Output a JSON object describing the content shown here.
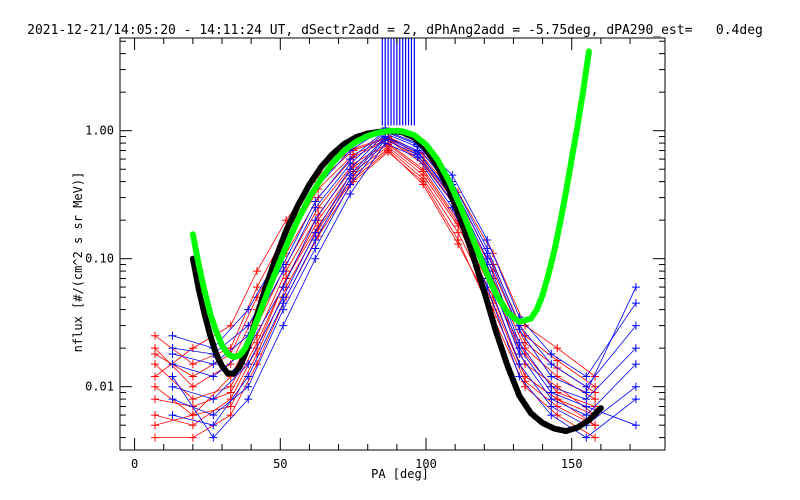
{
  "chart_data": {
    "type": "line",
    "title": "2021-12-21/14:05:20 - 14:11:24 UT, dSectr2add = 2, dPhAng2add = -5.75deg, dPA290_est=   0.4deg",
    "xlabel": "PA [deg]",
    "ylabel": "nflux [#/(cm^2 s sr MeV)]",
    "xlim": [
      -5,
      182
    ],
    "ylim": [
      0.0032,
      5.3
    ],
    "yscale": "log",
    "grid": false,
    "legend": "none",
    "x_ticks": [
      0,
      50,
      100,
      150
    ],
    "x_tick_labels": [
      "0",
      "50",
      "100",
      "150"
    ],
    "y_ticks": [
      0.01,
      0.1,
      1.0
    ],
    "y_tick_labels": [
      "0.01",
      "0.10",
      "1.00"
    ],
    "colors": {
      "red_traces": "#ff0000",
      "blue_traces": "#0000ff",
      "black_fit": "#000000",
      "green_fit": "#00ff00",
      "axes": "#000000"
    },
    "series": [
      {
        "color": "red",
        "style": "lines+plus-markers",
        "x": [
          7,
          20,
          33,
          42,
          52,
          63,
          75,
          87,
          99,
          111,
          123,
          134,
          145,
          158
        ],
        "curves": [
          [
            0.02,
            0.01,
            0.015,
            0.04,
            0.11,
            0.3,
            0.62,
            0.85,
            0.55,
            0.24,
            0.07,
            0.02,
            0.012,
            0.008
          ],
          [
            0.01,
            0.006,
            0.012,
            0.03,
            0.09,
            0.25,
            0.55,
            0.8,
            0.5,
            0.2,
            0.06,
            0.015,
            0.01,
            0.006
          ],
          [
            0.006,
            0.005,
            0.008,
            0.02,
            0.07,
            0.2,
            0.48,
            0.75,
            0.45,
            0.18,
            0.05,
            0.012,
            0.008,
            0.005
          ],
          [
            0.025,
            0.015,
            0.02,
            0.06,
            0.16,
            0.4,
            0.7,
            0.88,
            0.62,
            0.3,
            0.09,
            0.025,
            0.016,
            0.01
          ],
          [
            0.004,
            0.004,
            0.006,
            0.015,
            0.05,
            0.15,
            0.4,
            0.68,
            0.4,
            0.14,
            0.035,
            0.01,
            0.006,
            0.004
          ],
          [
            0.015,
            0.008,
            0.01,
            0.025,
            0.08,
            0.22,
            0.52,
            0.78,
            0.48,
            0.19,
            0.055,
            0.018,
            0.009,
            0.007
          ],
          [
            0.012,
            0.02,
            0.03,
            0.08,
            0.2,
            0.45,
            0.72,
            0.9,
            0.66,
            0.33,
            0.11,
            0.03,
            0.02,
            0.012
          ],
          [
            0.008,
            0.007,
            0.009,
            0.022,
            0.07,
            0.18,
            0.45,
            0.72,
            0.42,
            0.16,
            0.045,
            0.012,
            0.008,
            0.006
          ],
          [
            0.018,
            0.012,
            0.018,
            0.05,
            0.13,
            0.35,
            0.65,
            0.86,
            0.58,
            0.26,
            0.08,
            0.022,
            0.014,
            0.009
          ],
          [
            0.005,
            0.006,
            0.007,
            0.018,
            0.06,
            0.17,
            0.42,
            0.7,
            0.38,
            0.13,
            0.04,
            0.011,
            0.007,
            0.005
          ]
        ]
      },
      {
        "color": "blue",
        "style": "lines+plus-markers",
        "x": [
          13,
          27,
          39,
          51,
          62,
          74,
          86,
          97,
          109,
          121,
          132,
          143,
          155,
          172
        ],
        "curves": [
          [
            0.02,
            0.018,
            0.03,
            0.09,
            0.28,
            0.6,
            1.0,
            0.8,
            0.4,
            0.12,
            0.03,
            0.015,
            0.01,
            0.03
          ],
          [
            0.015,
            0.012,
            0.02,
            0.06,
            0.2,
            0.5,
            0.95,
            0.75,
            0.35,
            0.1,
            0.022,
            0.01,
            0.008,
            0.02
          ],
          [
            0.01,
            0.008,
            0.015,
            0.05,
            0.16,
            0.45,
            0.9,
            0.7,
            0.3,
            0.08,
            0.018,
            0.008,
            0.006,
            0.015
          ],
          [
            0.025,
            0.02,
            0.04,
            0.12,
            0.35,
            0.7,
            1.05,
            0.85,
            0.45,
            0.14,
            0.035,
            0.018,
            0.012,
            0.045
          ],
          [
            0.008,
            0.006,
            0.01,
            0.04,
            0.12,
            0.38,
            0.85,
            0.65,
            0.28,
            0.07,
            0.015,
            0.007,
            0.005,
            0.01
          ],
          [
            0.012,
            0.004,
            0.008,
            0.03,
            0.1,
            0.32,
            0.8,
            0.62,
            0.25,
            0.06,
            0.012,
            0.006,
            0.004,
            0.008
          ],
          [
            0.018,
            0.015,
            0.025,
            0.08,
            0.25,
            0.55,
            0.98,
            0.78,
            0.38,
            0.11,
            0.028,
            0.012,
            0.009,
            0.06
          ],
          [
            0.006,
            0.005,
            0.012,
            0.045,
            0.14,
            0.42,
            0.88,
            0.68,
            0.32,
            0.09,
            0.02,
            0.009,
            0.007,
            0.005
          ]
        ]
      },
      {
        "name": "",
        "color": "blue",
        "style": "vertical-lines",
        "x": [
          85,
          86,
          87,
          88,
          89,
          90,
          91,
          92,
          93,
          94,
          95,
          96
        ],
        "from": 1.1,
        "to": 5.3
      },
      {
        "color": "black",
        "style": "thick-dashed-fit",
        "x": [
          20,
          22,
          24,
          26,
          28,
          30,
          32,
          34,
          36,
          38,
          40,
          42,
          45,
          48,
          52,
          56,
          60,
          64,
          68,
          72,
          76,
          80,
          84,
          88,
          90,
          92,
          96,
          100,
          104,
          108,
          112,
          116,
          120,
          124,
          128,
          132,
          136,
          140,
          144,
          148,
          152,
          156,
          160
        ],
        "values": [
          0.1,
          0.058,
          0.037,
          0.025,
          0.018,
          0.0145,
          0.0127,
          0.0127,
          0.0142,
          0.018,
          0.025,
          0.036,
          0.06,
          0.095,
          0.165,
          0.26,
          0.38,
          0.52,
          0.66,
          0.79,
          0.89,
          0.95,
          0.98,
          0.99,
          0.985,
          0.97,
          0.88,
          0.72,
          0.52,
          0.34,
          0.2,
          0.108,
          0.055,
          0.027,
          0.0145,
          0.0085,
          0.0062,
          0.0052,
          0.0047,
          0.0045,
          0.0048,
          0.0055,
          0.0068
        ]
      },
      {
        "color": "green",
        "style": "thick-dashed-fit",
        "x": [
          20,
          22,
          24,
          26,
          28,
          30,
          32,
          34,
          36,
          38,
          40,
          42,
          45,
          48,
          52,
          56,
          60,
          64,
          68,
          72,
          76,
          80,
          84,
          88,
          90,
          92,
          96,
          100,
          104,
          108,
          112,
          116,
          120,
          124,
          128,
          132,
          136,
          138,
          140,
          142,
          144,
          146,
          148,
          150,
          152,
          154,
          156
        ],
        "values": [
          0.155,
          0.09,
          0.056,
          0.037,
          0.027,
          0.021,
          0.018,
          0.017,
          0.0175,
          0.02,
          0.025,
          0.033,
          0.05,
          0.075,
          0.125,
          0.2,
          0.3,
          0.42,
          0.56,
          0.7,
          0.82,
          0.91,
          0.97,
          1.0,
          1.0,
          0.99,
          0.92,
          0.78,
          0.59,
          0.4,
          0.25,
          0.145,
          0.085,
          0.053,
          0.038,
          0.032,
          0.034,
          0.04,
          0.052,
          0.075,
          0.115,
          0.19,
          0.33,
          0.6,
          1.1,
          2.1,
          4.3
        ]
      }
    ]
  }
}
